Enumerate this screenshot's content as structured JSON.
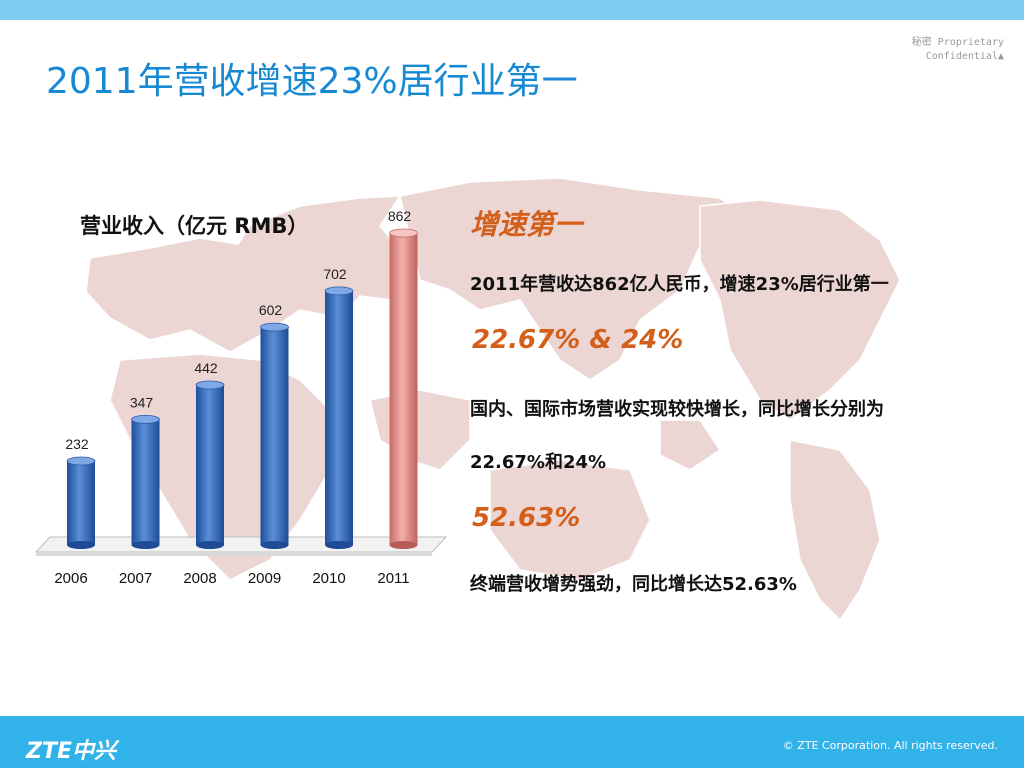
{
  "slide": {
    "title": "2011年营收增速23%居行业第一",
    "confidential_line1": "秘密  Proprietary",
    "confidential_line2": "Confidential▲"
  },
  "chart_data": {
    "type": "bar",
    "title": "营业收入（亿元 RMB）",
    "categories": [
      "2006",
      "2007",
      "2008",
      "2009",
      "2010",
      "2011"
    ],
    "values": [
      232,
      347,
      442,
      602,
      702,
      862
    ],
    "data_labels": [
      "232",
      "347",
      "442",
      "602",
      "702",
      "862"
    ],
    "xlabel": "",
    "ylabel": "",
    "ylim": [
      0,
      862
    ],
    "grid": false,
    "colors": {
      "default": "#3a6fc0",
      "highlight": "#e8908c"
    },
    "highlight_index": 5
  },
  "highlights": {
    "growth_heading": "增速第一",
    "growth_text": "2011年营收达862亿人民币，增速23%居行业第一",
    "domestic_heading": "22.67% & 24%",
    "domestic_text_line1": "国内、国际市场营收实现较快增长，同比增长分别为",
    "domestic_text_line2": "22.67%和24%",
    "terminal_heading": "52.63%",
    "terminal_text": "终端营收增势强劲，同比增长达52.63%"
  },
  "footer": {
    "logo": "ZTE中兴",
    "copyright": "© ZTE Corporation. All rights reserved."
  }
}
